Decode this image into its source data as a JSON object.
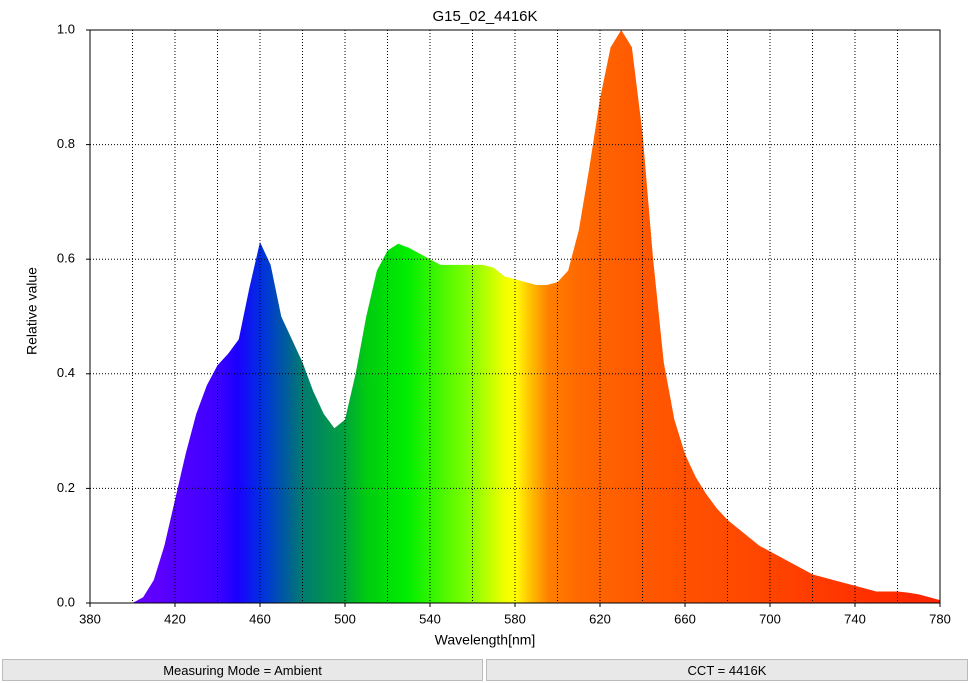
{
  "chart_data": {
    "type": "area",
    "title": "G15_02_4416K",
    "xlabel": "Wavelength[nm]",
    "ylabel": "Relative value",
    "x": [
      400,
      405,
      410,
      415,
      420,
      425,
      430,
      435,
      440,
      445,
      450,
      455,
      460,
      465,
      470,
      475,
      480,
      485,
      490,
      495,
      500,
      505,
      510,
      515,
      520,
      525,
      530,
      535,
      540,
      545,
      550,
      555,
      560,
      565,
      570,
      575,
      580,
      585,
      590,
      595,
      600,
      605,
      610,
      615,
      620,
      625,
      630,
      635,
      640,
      645,
      650,
      655,
      660,
      665,
      670,
      675,
      680,
      685,
      690,
      695,
      700,
      705,
      710,
      715,
      720,
      725,
      730,
      735,
      740,
      745,
      750,
      755,
      760,
      765,
      770,
      775,
      780
    ],
    "series": [
      {
        "values": [
          0,
          0.01,
          0.04,
          0.1,
          0.18,
          0.26,
          0.33,
          0.38,
          0.415,
          0.435,
          0.46,
          0.55,
          0.63,
          0.59,
          0.5,
          0.46,
          0.42,
          0.37,
          0.33,
          0.305,
          0.32,
          0.4,
          0.5,
          0.58,
          0.615,
          0.627,
          0.62,
          0.61,
          0.6,
          0.59,
          0.59,
          0.59,
          0.59,
          0.59,
          0.585,
          0.57,
          0.565,
          0.56,
          0.555,
          0.555,
          0.56,
          0.58,
          0.65,
          0.76,
          0.88,
          0.97,
          1.0,
          0.97,
          0.82,
          0.6,
          0.42,
          0.32,
          0.26,
          0.22,
          0.19,
          0.165,
          0.145,
          0.13,
          0.115,
          0.1,
          0.09,
          0.08,
          0.07,
          0.06,
          0.05,
          0.045,
          0.04,
          0.035,
          0.03,
          0.025,
          0.02,
          0.02,
          0.02,
          0.018,
          0.015,
          0.01,
          0.005
        ]
      }
    ],
    "xlim": [
      380,
      780
    ],
    "xticks": [
      380,
      420,
      460,
      500,
      540,
      580,
      620,
      660,
      700,
      740,
      780
    ],
    "xminor": [
      400,
      440,
      480,
      520,
      560,
      600,
      640,
      680,
      720,
      760
    ],
    "ylim": [
      0,
      1
    ],
    "yticks": [
      {
        "value": 0,
        "label": "0.0"
      },
      {
        "value": 0.2,
        "label": "0.2"
      },
      {
        "value": 0.4,
        "label": "0.4"
      },
      {
        "value": 0.6,
        "label": "0.6"
      },
      {
        "value": 0.8,
        "label": "0.8"
      },
      {
        "value": 1,
        "label": "1.0"
      }
    ],
    "grid": true
  },
  "status": [
    "Measuring Mode = Ambient",
    "CCT = 4416K"
  ]
}
